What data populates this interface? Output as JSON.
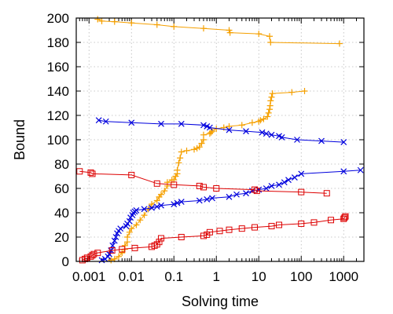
{
  "chart_data": {
    "type": "scatter",
    "xlabel": "Solving time",
    "ylabel": "Bound",
    "x_scale": "log",
    "xlim": [
      0.0005,
      3000
    ],
    "ylim": [
      0,
      200
    ],
    "grid": true,
    "legend": "none",
    "x_ticks": [
      0.001,
      0.01,
      0.1,
      1,
      10,
      100,
      1000
    ],
    "x_tick_labels": [
      "0.001",
      "0.01",
      "0.1",
      "1",
      "10",
      "100",
      "1000"
    ],
    "y_ticks": [
      0,
      20,
      40,
      60,
      80,
      100,
      120,
      140,
      160,
      180,
      200
    ],
    "y_tick_labels": [
      "0",
      "20",
      "40",
      "60",
      "80",
      "100",
      "120",
      "140",
      "160",
      "180",
      "200"
    ],
    "series": [
      {
        "marker": "plus",
        "color": "#f5a000",
        "x": [
          0.0016,
          0.002,
          0.004,
          0.01,
          0.04,
          0.1,
          0.5,
          2,
          2.1,
          10,
          18,
          19,
          800
        ],
        "y": [
          199,
          197.5,
          197,
          196,
          194.5,
          193,
          191.5,
          190,
          188,
          187,
          185,
          180,
          179
        ]
      },
      {
        "marker": "plus",
        "color": "#f5a000",
        "x": [
          0.0033,
          0.004,
          0.005,
          0.006,
          0.007,
          0.007,
          0.008,
          0.008,
          0.009,
          0.01,
          0.013,
          0.016,
          0.02,
          0.025,
          0.03,
          0.04,
          0.045,
          0.05,
          0.06,
          0.07,
          0.07,
          0.09,
          0.1,
          0.11,
          0.12,
          0.12,
          0.13,
          0.14,
          0.15,
          0.2,
          0.3,
          0.35,
          0.4,
          0.45,
          0.5,
          0.5,
          0.7,
          0.75,
          0.8,
          1,
          1.5,
          2,
          4,
          7,
          10,
          11,
          13,
          16,
          17,
          18,
          18.5,
          19,
          20,
          21,
          60,
          120
        ],
        "y": [
          1,
          2,
          4,
          7,
          10,
          13,
          16,
          20,
          24,
          27,
          30,
          34,
          38,
          43,
          47,
          50,
          53,
          55,
          58,
          62,
          65,
          67,
          67,
          70,
          72,
          75,
          81,
          85,
          90,
          91,
          92,
          93,
          94,
          97,
          100,
          104,
          105,
          106,
          107,
          109,
          110,
          111,
          112,
          114,
          115,
          116,
          117,
          119,
          122,
          125,
          128,
          132,
          135,
          138,
          139,
          140
        ]
      },
      {
        "marker": "x",
        "color": "#0000dd",
        "x": [
          0.0017,
          0.0025,
          0.01,
          0.05,
          0.15,
          0.5,
          0.6,
          0.7,
          2,
          5,
          12,
          15,
          20,
          30,
          35,
          80,
          300,
          1000
        ],
        "y": [
          116,
          115,
          114,
          113,
          113,
          112,
          111,
          110,
          108,
          107,
          106,
          105,
          104,
          103,
          102,
          100,
          99,
          98
        ]
      },
      {
        "marker": "x",
        "color": "#0000dd",
        "x": [
          0.002,
          0.0024,
          0.0028,
          0.003,
          0.0033,
          0.0036,
          0.004,
          0.0043,
          0.0046,
          0.005,
          0.0055,
          0.0075,
          0.008,
          0.009,
          0.0095,
          0.0105,
          0.011,
          0.012,
          0.013,
          0.02,
          0.03,
          0.04,
          0.05,
          0.1,
          0.12,
          0.15,
          0.4,
          0.6,
          0.8,
          2,
          3,
          5,
          7,
          10,
          15,
          20,
          30,
          40,
          50,
          70,
          100,
          1000,
          2500
        ],
        "y": [
          1,
          2,
          4,
          6,
          9,
          13,
          17,
          20,
          23,
          25,
          27,
          29,
          31,
          33,
          36,
          38,
          40,
          41,
          42,
          43,
          44,
          45,
          46,
          47,
          48,
          49,
          50,
          51,
          52,
          53,
          55,
          56,
          58,
          59,
          60,
          62,
          63,
          65,
          67,
          69,
          72,
          74,
          75
        ]
      },
      {
        "marker": "square",
        "color": "#dd0000",
        "x": [
          0.0006,
          0.0011,
          0.0012,
          0.01,
          0.04,
          0.1,
          0.4,
          0.5,
          1.0,
          8,
          9,
          100,
          400
        ],
        "y": [
          74,
          73,
          72,
          71,
          64,
          63,
          62,
          61,
          60,
          59,
          58,
          57,
          56
        ]
      },
      {
        "marker": "square",
        "color": "#dd0000",
        "x": [
          0.0007,
          0.0008,
          0.0009,
          0.0011,
          0.0012,
          0.0013,
          0.0016,
          0.0035,
          0.006,
          0.012,
          0.03,
          0.035,
          0.04,
          0.045,
          0.05,
          0.15,
          0.5,
          0.6,
          0.7,
          1.2,
          2,
          4,
          8,
          20,
          30,
          100,
          200,
          500,
          1000,
          1050,
          1100
        ],
        "y": [
          1,
          2,
          3,
          4,
          5,
          6,
          7,
          9,
          10,
          11,
          12,
          13,
          14,
          16,
          19,
          20,
          21,
          22,
          24,
          25,
          26,
          27,
          28,
          29,
          30,
          31,
          32,
          34,
          35,
          36,
          37
        ]
      }
    ]
  }
}
